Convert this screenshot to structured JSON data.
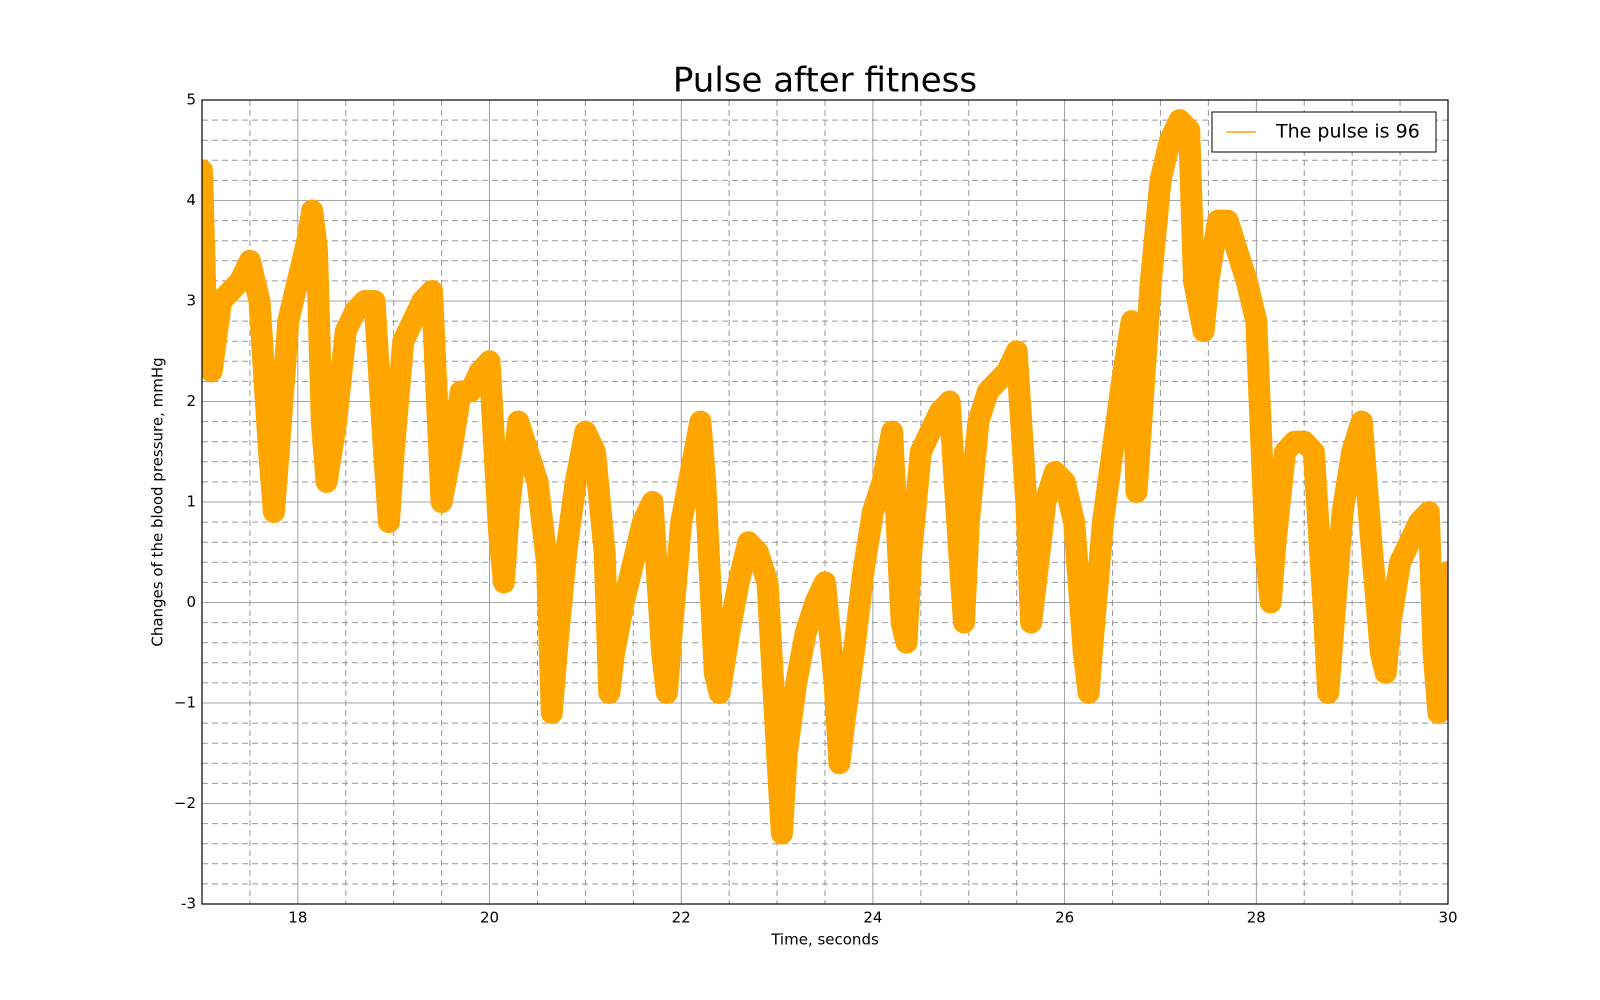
{
  "chart_data": {
    "type": "line",
    "title": "Pulse after fitness",
    "xlabel": "Time, seconds",
    "ylabel": "Changes of the blood pressure, mmHg",
    "x": [
      17.0,
      17.05,
      17.1,
      17.2,
      17.3,
      17.4,
      17.5,
      17.6,
      17.7,
      17.75,
      17.8,
      17.9,
      18.0,
      18.1,
      18.15,
      18.2,
      18.25,
      18.3,
      18.4,
      18.5,
      18.6,
      18.7,
      18.8,
      18.9,
      18.95,
      19.0,
      19.1,
      19.2,
      19.3,
      19.4,
      19.5,
      19.6,
      19.7,
      19.8,
      19.9,
      20.0,
      20.1,
      20.15,
      20.2,
      20.3,
      20.4,
      20.5,
      20.6,
      20.65,
      20.7,
      20.8,
      20.9,
      21.0,
      21.1,
      21.2,
      21.25,
      21.3,
      21.4,
      21.5,
      21.6,
      21.7,
      21.8,
      21.85,
      21.9,
      22.0,
      22.1,
      22.2,
      22.25,
      22.35,
      22.4,
      22.5,
      22.6,
      22.7,
      22.8,
      22.9,
      23.0,
      23.05,
      23.1,
      23.2,
      23.3,
      23.4,
      23.5,
      23.6,
      23.65,
      23.7,
      23.8,
      23.9,
      24.0,
      24.1,
      24.2,
      24.3,
      24.35,
      24.4,
      24.5,
      24.6,
      24.7,
      24.8,
      24.9,
      24.95,
      25.0,
      25.1,
      25.2,
      25.3,
      25.4,
      25.5,
      25.6,
      25.65,
      25.7,
      25.8,
      25.9,
      26.0,
      26.1,
      26.2,
      26.25,
      26.3,
      26.4,
      26.5,
      26.6,
      26.7,
      26.75,
      26.8,
      26.9,
      27.0,
      27.1,
      27.2,
      27.3,
      27.35,
      27.45,
      27.5,
      27.6,
      27.7,
      27.8,
      27.9,
      28.0,
      28.1,
      28.15,
      28.2,
      28.3,
      28.4,
      28.5,
      28.6,
      28.7,
      28.75,
      28.8,
      28.9,
      29.0,
      29.1,
      29.2,
      29.3,
      29.35,
      29.4,
      29.5,
      29.6,
      29.7,
      29.8,
      29.85,
      29.9,
      30.0
    ],
    "series": [
      {
        "name": "The pulse is 96",
        "color": "#ffa500",
        "values": [
          4.3,
          2.5,
          2.3,
          3.0,
          3.1,
          3.2,
          3.4,
          3.0,
          1.5,
          0.9,
          1.5,
          2.8,
          3.2,
          3.6,
          3.9,
          3.5,
          1.8,
          1.2,
          1.8,
          2.7,
          2.9,
          3.0,
          3.0,
          1.5,
          0.8,
          1.5,
          2.6,
          2.8,
          3.0,
          3.1,
          1.0,
          1.5,
          2.1,
          2.1,
          2.3,
          2.4,
          0.7,
          0.2,
          0.9,
          1.8,
          1.5,
          1.2,
          0.4,
          -1.1,
          -0.5,
          0.5,
          1.2,
          1.7,
          1.5,
          0.5,
          -0.9,
          -0.5,
          0.0,
          0.4,
          0.8,
          1.0,
          -0.5,
          -0.9,
          -0.3,
          0.8,
          1.3,
          1.8,
          1.2,
          -0.7,
          -0.9,
          -0.3,
          0.2,
          0.6,
          0.5,
          0.2,
          -1.5,
          -2.3,
          -1.5,
          -0.8,
          -0.3,
          0.0,
          0.2,
          -0.8,
          -1.6,
          -1.2,
          -0.5,
          0.3,
          0.9,
          1.2,
          1.7,
          -0.2,
          -0.4,
          0.5,
          1.5,
          1.7,
          1.9,
          2.0,
          0.5,
          -0.2,
          0.8,
          1.8,
          2.1,
          2.2,
          2.3,
          2.5,
          1.0,
          -0.2,
          0.2,
          1.0,
          1.3,
          1.2,
          0.8,
          -0.5,
          -0.9,
          -0.3,
          0.8,
          1.5,
          2.2,
          2.8,
          1.1,
          1.8,
          3.2,
          4.2,
          4.6,
          4.8,
          4.7,
          3.2,
          2.7,
          3.2,
          3.8,
          3.8,
          3.5,
          3.2,
          2.8,
          0.5,
          0.0,
          0.6,
          1.5,
          1.6,
          1.6,
          1.5,
          0.0,
          -0.9,
          -0.3,
          0.9,
          1.5,
          1.8,
          0.6,
          -0.5,
          -0.7,
          -0.2,
          0.4,
          0.6,
          0.8,
          0.9,
          -0.5,
          -1.1,
          0.3
        ]
      }
    ],
    "xlim": [
      17,
      30
    ],
    "ylim": [
      -3,
      5
    ],
    "xticks": [
      18,
      20,
      22,
      24,
      26,
      28,
      30
    ],
    "yticks": [
      -3,
      {
        "value": -2,
        "label": "−2"
      },
      {
        "value": -1,
        "label": "−1"
      },
      0,
      1,
      2,
      3,
      4,
      5
    ],
    "xminorticks": [
      17.5,
      18.5,
      19,
      19.5,
      20.5,
      21,
      21.5,
      22.5,
      23,
      23.5,
      24.5,
      25,
      25.5,
      26.5,
      27,
      27.5,
      28.5,
      29,
      29.5
    ],
    "yminorticks": [
      -2.8,
      -2.6,
      -2.4,
      -2.2,
      -1.8,
      -1.6,
      -1.4,
      -1.2,
      -0.8,
      -0.6,
      -0.4,
      -0.2,
      0.2,
      0.4,
      0.6,
      0.8,
      1.2,
      1.4,
      1.6,
      1.8,
      2.2,
      2.4,
      2.6,
      2.8,
      3.2,
      3.4,
      3.6,
      3.8,
      4.2,
      4.4,
      4.6,
      4.8
    ],
    "grid": true,
    "legend": "upper right"
  }
}
